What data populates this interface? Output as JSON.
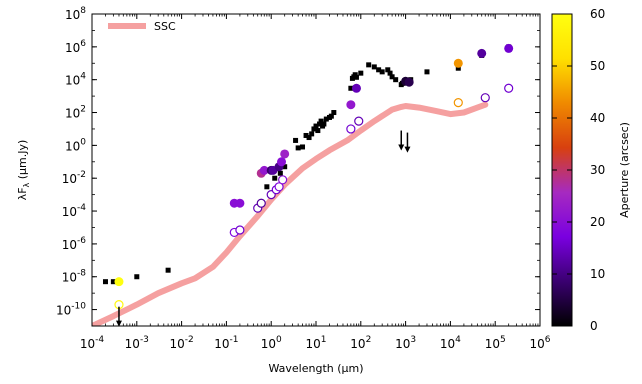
{
  "chart_data": {
    "type": "scatter",
    "xlabel": "Wavelength (μm)",
    "ylabel": "λF",
    "ylabel_sub": "λ",
    "ylabel_unit": " (μm.Jy)",
    "xscale": "log",
    "yscale": "log",
    "xlim": [
      0.0001,
      1000000
    ],
    "ylim": [
      1e-11,
      100000000
    ],
    "x_ticks": [
      {
        "value": 0.0001,
        "base": "10",
        "exp": "-4"
      },
      {
        "value": 0.001,
        "base": "10",
        "exp": "-3"
      },
      {
        "value": 0.01,
        "base": "10",
        "exp": "-2"
      },
      {
        "value": 0.1,
        "base": "10",
        "exp": "-1"
      },
      {
        "value": 1,
        "base": "10",
        "exp": "0"
      },
      {
        "value": 10,
        "base": "10",
        "exp": "1"
      },
      {
        "value": 100,
        "base": "10",
        "exp": "2"
      },
      {
        "value": 1000,
        "base": "10",
        "exp": "3"
      },
      {
        "value": 10000,
        "base": "10",
        "exp": "4"
      },
      {
        "value": 100000,
        "base": "10",
        "exp": "5"
      },
      {
        "value": 1000000,
        "base": "10",
        "exp": "6"
      }
    ],
    "y_ticks": [
      {
        "value": 1e-10,
        "base": "10",
        "exp": "-10"
      },
      {
        "value": 1e-08,
        "base": "10",
        "exp": "-8"
      },
      {
        "value": 1e-06,
        "base": "10",
        "exp": "-6"
      },
      {
        "value": 0.0001,
        "base": "10",
        "exp": "-4"
      },
      {
        "value": 0.01,
        "base": "10",
        "exp": "-2"
      },
      {
        "value": 1,
        "base": "10",
        "exp": "0"
      },
      {
        "value": 100,
        "base": "10",
        "exp": "2"
      },
      {
        "value": 10000,
        "base": "10",
        "exp": "4"
      },
      {
        "value": 1000000,
        "base": "10",
        "exp": "6"
      },
      {
        "value": 100000000,
        "base": "10",
        "exp": "8"
      }
    ],
    "legend": {
      "position": "top-left",
      "entries": [
        {
          "label": "SSC",
          "color": "#f5a0a0"
        }
      ]
    },
    "colorbar": {
      "label": "Aperture (arcsec)",
      "range": [
        0,
        60
      ],
      "ticks": [
        "0",
        "10",
        "20",
        "30",
        "40",
        "50",
        "60"
      ],
      "colormap": [
        "#000000",
        "#3a0070",
        "#7a00e0",
        "#a62ac0",
        "#d8400f",
        "#f08a00",
        "#ffe000",
        "#ffff10"
      ]
    },
    "series": [
      {
        "kind": "model_curve",
        "name": "SSC",
        "color": "#f5a0a0",
        "x": [
          0.0001,
          0.0003,
          0.001,
          0.003,
          0.01,
          0.02,
          0.05,
          0.1,
          0.2,
          0.5,
          1,
          2,
          5,
          10,
          20,
          50,
          100,
          200,
          500,
          800,
          1000,
          2000,
          5000,
          10000,
          20000,
          40000,
          60000
        ],
        "y": [
          1e-11,
          4e-11,
          2e-10,
          1e-09,
          4e-09,
          8e-09,
          4e-08,
          3e-07,
          3e-06,
          5e-05,
          0.0005,
          0.004,
          0.04,
          0.15,
          0.5,
          2,
          8,
          30,
          150,
          220,
          250,
          200,
          120,
          80,
          100,
          200,
          300
        ]
      },
      {
        "kind": "black_squares",
        "x": [
          0.0002,
          0.0003,
          0.001,
          0.005,
          0.8,
          1.2,
          1.6,
          2,
          3.5,
          4,
          5,
          6,
          7,
          8,
          9,
          10,
          11,
          12,
          13,
          14,
          15,
          17,
          20,
          22,
          25,
          60,
          65,
          70,
          75,
          80,
          100,
          150,
          200,
          250,
          300,
          400,
          450,
          500,
          600,
          800,
          850,
          1000,
          1300,
          3000,
          15000,
          50000,
          200000
        ],
        "y": [
          5e-09,
          5e-09,
          1e-08,
          2.5e-08,
          0.003,
          0.01,
          0.02,
          0.05,
          2,
          0.7,
          0.8,
          4,
          3,
          5,
          10,
          15,
          8,
          20,
          30,
          15,
          20,
          40,
          50,
          60,
          100,
          3000,
          12000,
          15000,
          20000,
          14000,
          25000,
          80000,
          60000,
          40000,
          30000,
          40000,
          25000,
          15000,
          10000,
          5000,
          6000,
          8000,
          10000,
          30000,
          50000,
          300000,
          1000000
        ]
      },
      {
        "kind": "aperture_dots",
        "x": [
          0.0004,
          0.15,
          0.2,
          0.6,
          0.7,
          1,
          1.1,
          1.5,
          1.7,
          2,
          60,
          80,
          1000,
          1200,
          15000,
          50000,
          200000
        ],
        "y": [
          5e-09,
          0.0003,
          0.0003,
          0.02,
          0.03,
          0.03,
          0.03,
          0.05,
          0.1,
          0.3,
          300,
          3000,
          8000,
          7000,
          100000,
          400000,
          800000
        ],
        "aperture": [
          60,
          20,
          20,
          28,
          22,
          8,
          12,
          10,
          20,
          24,
          22,
          14,
          4,
          6,
          44,
          12,
          16
        ]
      },
      {
        "kind": "open_circles",
        "x": [
          0.0004,
          0.15,
          0.2,
          0.5,
          0.6,
          1,
          1.3,
          1.5,
          1.8,
          60,
          90,
          15000,
          60000,
          200000
        ],
        "y": [
          2e-10,
          5e-06,
          7e-06,
          0.00015,
          0.0003,
          0.001,
          0.002,
          0.003,
          0.008,
          10,
          30,
          400,
          800,
          3000
        ],
        "aperture": [
          58,
          18,
          16,
          14,
          12,
          14,
          16,
          18,
          20,
          16,
          14,
          44,
          14,
          16
        ]
      },
      {
        "kind": "upper_limits",
        "x": [
          0.0004,
          800,
          1100
        ],
        "y": [
          1.5e-10,
          8,
          6
        ]
      }
    ]
  }
}
